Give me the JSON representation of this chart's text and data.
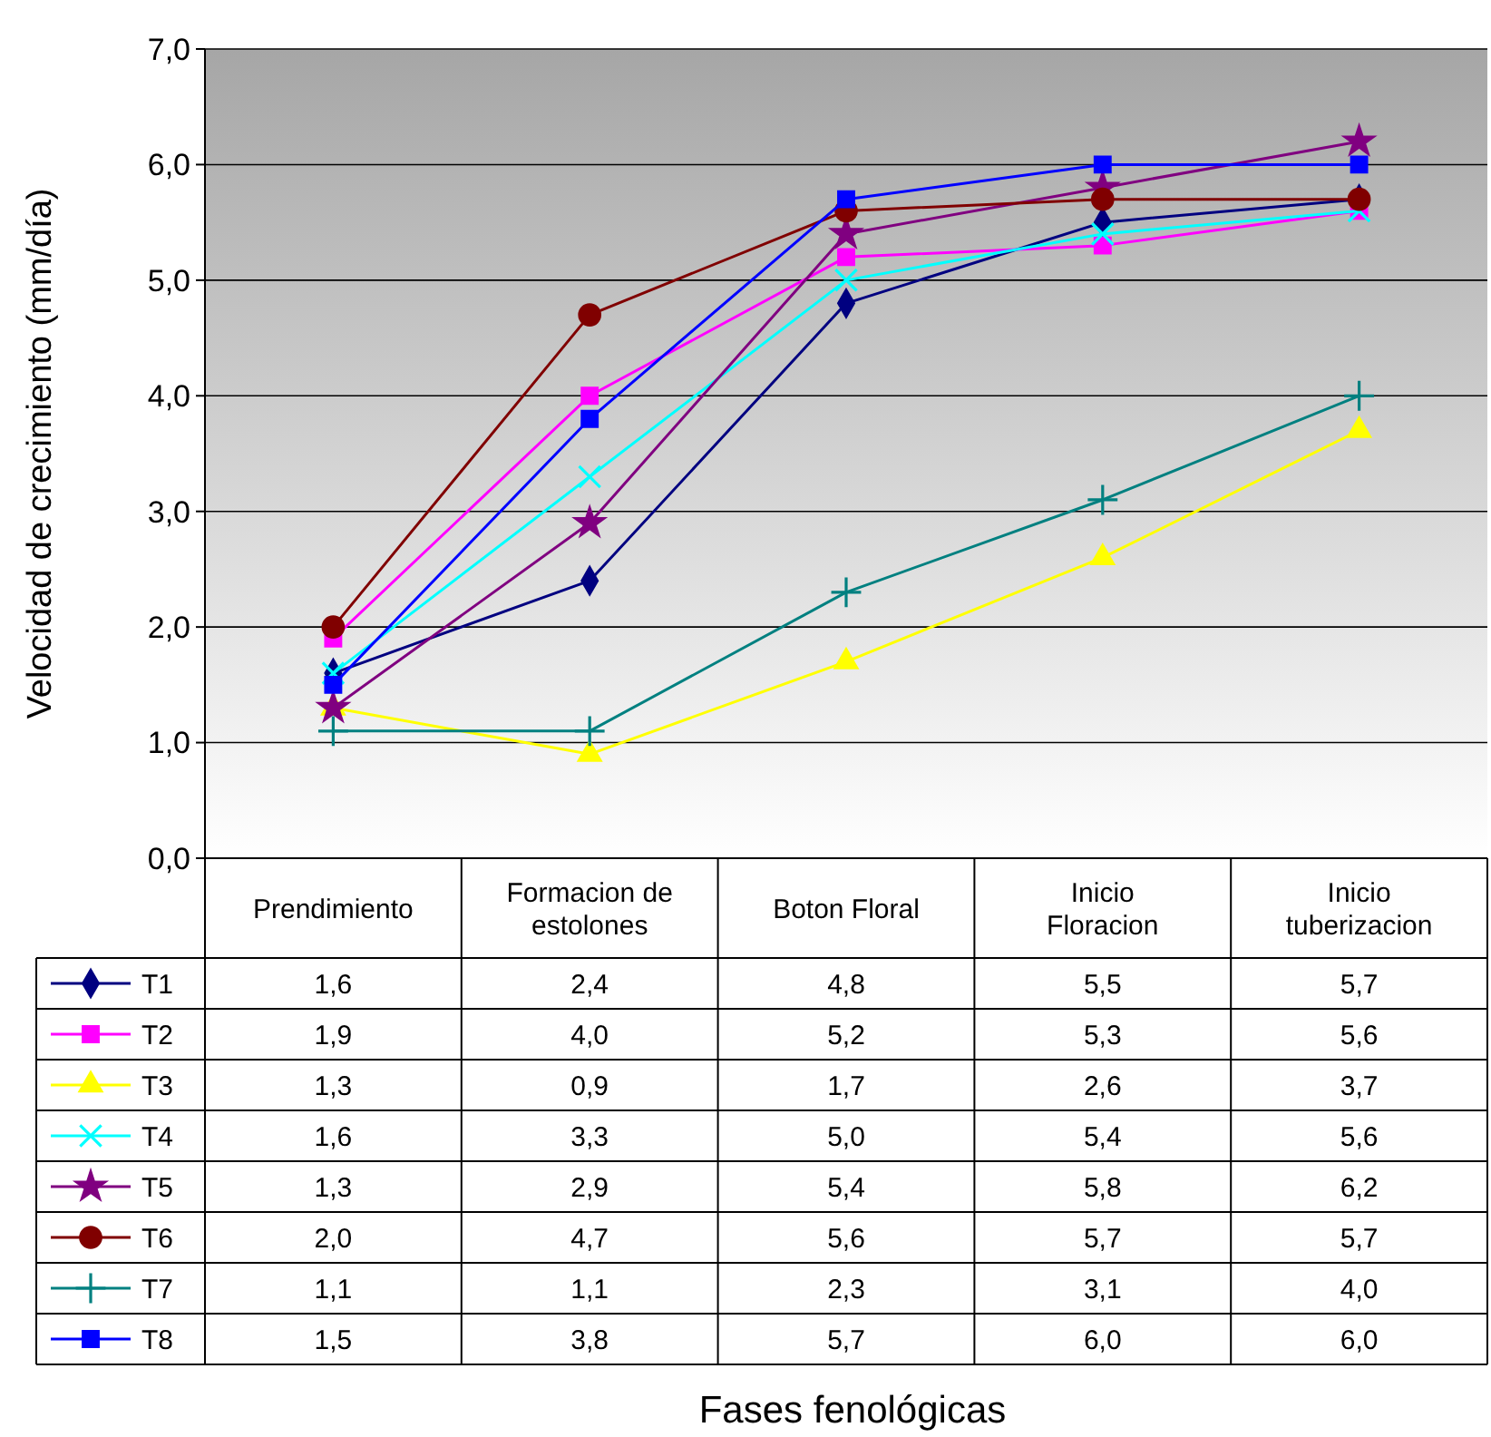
{
  "chart_data": {
    "type": "line",
    "annotations": [
      "Fases fenológicas"
    ],
    "ylabel": "Velocidad de crecimiento (mm/día)",
    "categories": [
      "Prendimiento",
      "Formacion de estolones",
      "Boton Floral",
      "Inicio Floracion",
      "Inicio tuberizacion"
    ],
    "ylim": [
      0,
      7
    ],
    "yticks": [
      {
        "value": 0,
        "label": "0,0"
      },
      {
        "value": 1,
        "label": "1,0"
      },
      {
        "value": 2,
        "label": "2,0"
      },
      {
        "value": 3,
        "label": "3,0"
      },
      {
        "value": 4,
        "label": "4,0"
      },
      {
        "value": 5,
        "label": "5,0"
      },
      {
        "value": 6,
        "label": "6,0"
      },
      {
        "value": 7,
        "label": "7,0"
      }
    ],
    "grid": "y",
    "legend": "bottom left",
    "series": [
      {
        "name": "T1",
        "color": "#000080",
        "marker": "diamond",
        "values": [
          1.6,
          2.4,
          4.8,
          5.5,
          5.7
        ],
        "value_labels": [
          "1,6",
          "2,4",
          "4,8",
          "5,5",
          "5,7"
        ]
      },
      {
        "name": "T2",
        "color": "#ff00ff",
        "marker": "square",
        "values": [
          1.9,
          4.0,
          5.2,
          5.3,
          5.6
        ],
        "value_labels": [
          "1,9",
          "4,0",
          "5,2",
          "5,3",
          "5,6"
        ]
      },
      {
        "name": "T3",
        "color": "#ffff00",
        "marker": "triangle",
        "values": [
          1.3,
          0.9,
          1.7,
          2.6,
          3.7
        ],
        "value_labels": [
          "1,3",
          "0,9",
          "1,7",
          "2,6",
          "3,7"
        ]
      },
      {
        "name": "T4",
        "color": "#00ffff",
        "marker": "cross",
        "values": [
          1.6,
          3.3,
          5.0,
          5.4,
          5.6
        ],
        "value_labels": [
          "1,6",
          "3,3",
          "5,0",
          "5,4",
          "5,6"
        ]
      },
      {
        "name": "T5",
        "color": "#800080",
        "marker": "star",
        "values": [
          1.3,
          2.9,
          5.4,
          5.8,
          6.2
        ],
        "value_labels": [
          "1,3",
          "2,9",
          "5,4",
          "5,8",
          "6,2"
        ]
      },
      {
        "name": "T6",
        "color": "#800000",
        "marker": "circle",
        "values": [
          2.0,
          4.7,
          5.6,
          5.7,
          5.7
        ],
        "value_labels": [
          "2,0",
          "4,7",
          "5,6",
          "5,7",
          "5,7"
        ]
      },
      {
        "name": "T7",
        "color": "#008080",
        "marker": "plus",
        "values": [
          1.1,
          1.1,
          2.3,
          3.1,
          4.0
        ],
        "value_labels": [
          "1,1",
          "1,1",
          "2,3",
          "3,1",
          "4,0"
        ]
      },
      {
        "name": "T8",
        "color": "#0000ff",
        "marker": "square",
        "values": [
          1.5,
          3.8,
          5.7,
          6.0,
          6.0
        ],
        "value_labels": [
          "1,5",
          "3,8",
          "5,7",
          "6,0",
          "6,0"
        ]
      }
    ]
  }
}
